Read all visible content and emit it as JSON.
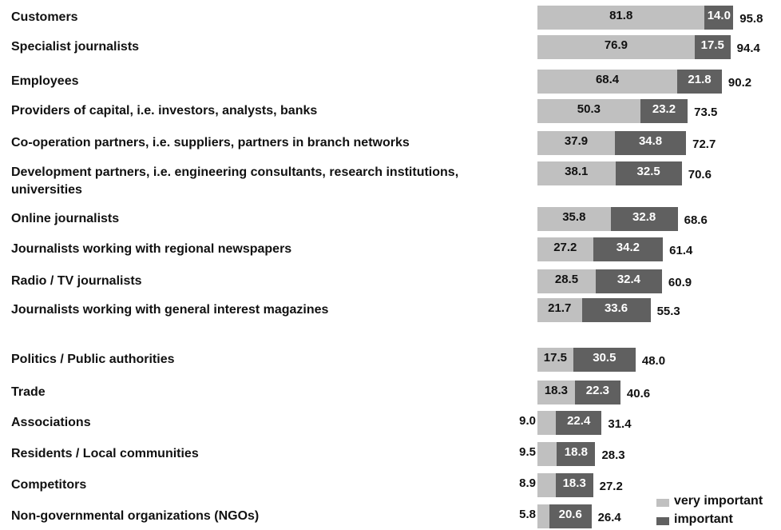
{
  "chart_data": {
    "type": "stacked-bar",
    "categories": [
      "Customers",
      "Specialist journalists",
      "Employees",
      "Providers of capital, i.e. investors, analysts, banks",
      "Co-operation partners, i.e. suppliers, partners in branch networks",
      "Development partners, i.e. engineering consultants, research institutions, universities",
      "Online journalists",
      "Journalists working with regional newspapers",
      "Radio / TV journalists",
      "Journalists working with general interest magazines",
      "Politics / Public authorities",
      "Trade",
      "Associations",
      "Residents / Local communities",
      "Competitors",
      "Non-governmental organizations (NGOs)"
    ],
    "series": [
      {
        "name": "very important",
        "color": "#c0c0c0",
        "values": [
          81.8,
          76.9,
          68.4,
          50.3,
          37.9,
          38.1,
          35.8,
          27.2,
          28.5,
          21.7,
          17.5,
          18.3,
          9.0,
          9.5,
          8.9,
          5.8
        ],
        "value_labels": [
          "81.8",
          "76.9",
          "68.4",
          "50.3",
          "37.9",
          "38.1",
          "35.8",
          "27.2",
          "28.5",
          "21.7",
          "17.5",
          "18.3",
          "9.0",
          "9.5",
          "8.9",
          "5.8"
        ]
      },
      {
        "name": "important",
        "color": "#606060",
        "values": [
          14.0,
          17.5,
          21.8,
          23.2,
          34.8,
          32.5,
          32.8,
          34.2,
          32.4,
          33.6,
          30.5,
          22.3,
          22.4,
          18.8,
          18.3,
          20.6
        ],
        "value_labels": [
          "14.0",
          "17.5",
          "21.8",
          "23.2",
          "34.8",
          "32.5",
          "32.8",
          "34.2",
          "32.4",
          "33.6",
          "30.5",
          "22.3",
          "22.4",
          "18.8",
          "18.3",
          "20.6"
        ]
      }
    ],
    "totals": [
      95.8,
      94.4,
      90.2,
      73.5,
      72.7,
      70.6,
      68.6,
      61.4,
      60.9,
      55.3,
      48.0,
      40.6,
      31.4,
      28.3,
      27.2,
      26.4
    ],
    "total_labels": [
      "95.8",
      "94.4",
      "90.2",
      "73.5",
      "72.7",
      "70.6",
      "68.6",
      "61.4",
      "60.9",
      "55.3",
      "48.0",
      "40.6",
      "31.4",
      "28.3",
      "27.2",
      "26.4"
    ],
    "legend": "bottom-right"
  }
}
